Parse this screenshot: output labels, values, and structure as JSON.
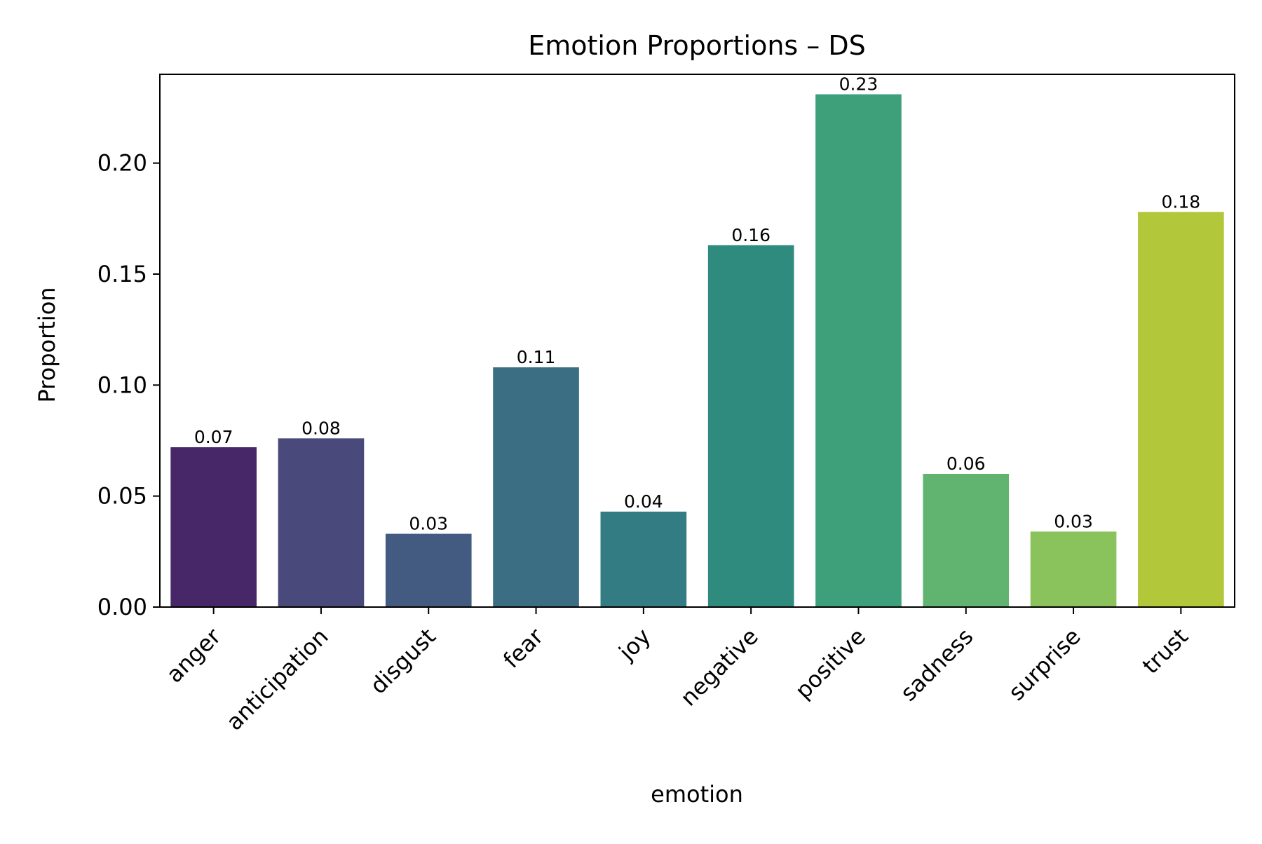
{
  "chart_data": {
    "type": "bar",
    "title": "Emotion Proportions – DS",
    "xlabel": "emotion",
    "ylabel": "Proportion",
    "categories": [
      "anger",
      "anticipation",
      "disgust",
      "fear",
      "joy",
      "negative",
      "positive",
      "sadness",
      "surprise",
      "trust"
    ],
    "values": [
      0.072,
      0.076,
      0.033,
      0.108,
      0.043,
      0.163,
      0.231,
      0.06,
      0.034,
      0.178
    ],
    "value_labels": [
      "0.07",
      "0.08",
      "0.03",
      "0.11",
      "0.04",
      "0.16",
      "0.23",
      "0.06",
      "0.03",
      "0.18"
    ],
    "colors": [
      "#482768",
      "#49497b",
      "#435b80",
      "#3c6e83",
      "#337c84",
      "#308b7f",
      "#3ea07a",
      "#61b46f",
      "#8ac35b",
      "#b3c73b"
    ],
    "ylim": [
      0,
      0.24
    ],
    "yticks": [
      0.0,
      0.05,
      0.1,
      0.15,
      0.2
    ],
    "ytick_labels": [
      "0.00",
      "0.05",
      "0.10",
      "0.15",
      "0.20"
    ],
    "grid": false,
    "legend": "none"
  }
}
